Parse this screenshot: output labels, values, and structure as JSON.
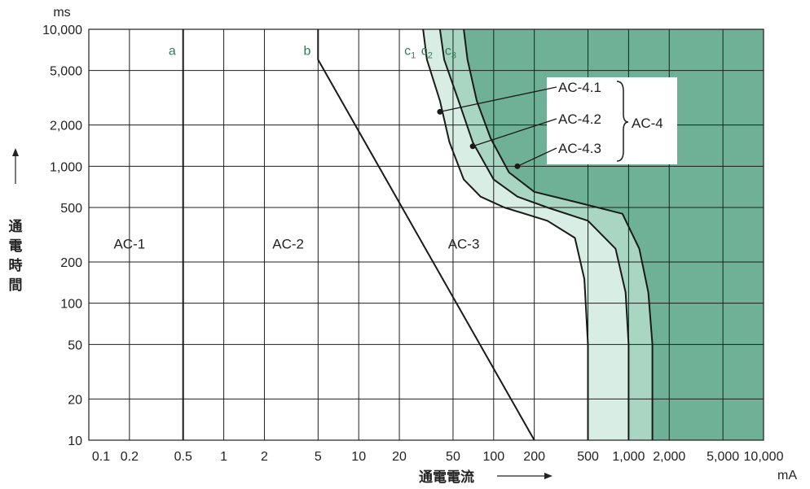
{
  "chart_data": {
    "type": "line",
    "title": "",
    "xlabel": "通電電流",
    "ylabel": "通電時間",
    "x_unit": "mA",
    "y_unit": "ms",
    "x_scale": "log",
    "y_scale": "log",
    "xlim": [
      0.1,
      10000
    ],
    "ylim": [
      10,
      10000
    ],
    "x_ticks": [
      0.1,
      0.2,
      0.5,
      1,
      2,
      5,
      10,
      20,
      50,
      100,
      200,
      500,
      1000,
      2000,
      5000,
      10000
    ],
    "x_tick_labels": [
      "0.1",
      "0.2",
      "0.5",
      "1",
      "2",
      "5",
      "10",
      "20",
      "50",
      "100",
      "200",
      "500",
      "1,000",
      "2,000",
      "5,000",
      "10,000"
    ],
    "y_ticks": [
      10,
      20,
      50,
      100,
      200,
      500,
      1000,
      2000,
      5000,
      10000
    ],
    "y_tick_labels": [
      "10",
      "20",
      "50",
      "100",
      "200",
      "500",
      "1,000",
      "2,000",
      "5,000",
      "10,000"
    ],
    "grid": true,
    "series": [
      {
        "name": "a",
        "points": [
          [
            0.5,
            10
          ],
          [
            0.5,
            10000
          ]
        ]
      },
      {
        "name": "b",
        "points": [
          [
            5,
            10000
          ],
          [
            5,
            6000
          ],
          [
            200,
            10
          ]
        ]
      },
      {
        "name": "c1",
        "points": [
          [
            30,
            10000
          ],
          [
            32,
            6000
          ],
          [
            40,
            3000
          ],
          [
            47,
            1500
          ],
          [
            60,
            800
          ],
          [
            80,
            600
          ],
          [
            120,
            500
          ],
          [
            250,
            400
          ],
          [
            400,
            300
          ],
          [
            470,
            150
          ],
          [
            500,
            50
          ],
          [
            500,
            10
          ]
        ]
      },
      {
        "name": "c2",
        "points": [
          [
            40,
            10000
          ],
          [
            43,
            6000
          ],
          [
            55,
            3000
          ],
          [
            70,
            1500
          ],
          [
            100,
            800
          ],
          [
            150,
            600
          ],
          [
            250,
            500
          ],
          [
            500,
            400
          ],
          [
            800,
            250
          ],
          [
            950,
            120
          ],
          [
            1000,
            50
          ],
          [
            1000,
            10
          ]
        ]
      },
      {
        "name": "c3",
        "points": [
          [
            60,
            10000
          ],
          [
            64,
            6000
          ],
          [
            75,
            3000
          ],
          [
            95,
            1600
          ],
          [
            130,
            900
          ],
          [
            200,
            650
          ],
          [
            400,
            550
          ],
          [
            900,
            450
          ],
          [
            1200,
            250
          ],
          [
            1400,
            120
          ],
          [
            1500,
            50
          ],
          [
            1500,
            10
          ]
        ]
      }
    ],
    "curve_labels": [
      {
        "key": "a",
        "text": "a"
      },
      {
        "key": "b",
        "text": "b"
      },
      {
        "key": "c1",
        "base": "c",
        "sub": "1"
      },
      {
        "key": "c2",
        "base": "c",
        "sub": "2"
      },
      {
        "key": "c3",
        "base": "c",
        "sub": "3"
      }
    ],
    "zones": [
      {
        "label": "AC-1",
        "x": 0.2,
        "y": 250
      },
      {
        "label": "AC-2",
        "x": 3,
        "y": 250
      },
      {
        "label": "AC-3",
        "x": 60,
        "y": 250
      }
    ],
    "annotations": [
      {
        "label": "AC-4.1",
        "marker": [
          40,
          2500
        ]
      },
      {
        "label": "AC-4.2",
        "marker": [
          70,
          1400
        ]
      },
      {
        "label": "AC-4.3",
        "marker": [
          150,
          1000
        ]
      }
    ],
    "group_label": "AC-4",
    "colors": {
      "light_region": "#d8ede3",
      "mid_region": "#a9d6c2",
      "dark_region": "#6fb196",
      "curve_label": "#2e7d5b",
      "line": "#1a1a1a"
    }
  }
}
